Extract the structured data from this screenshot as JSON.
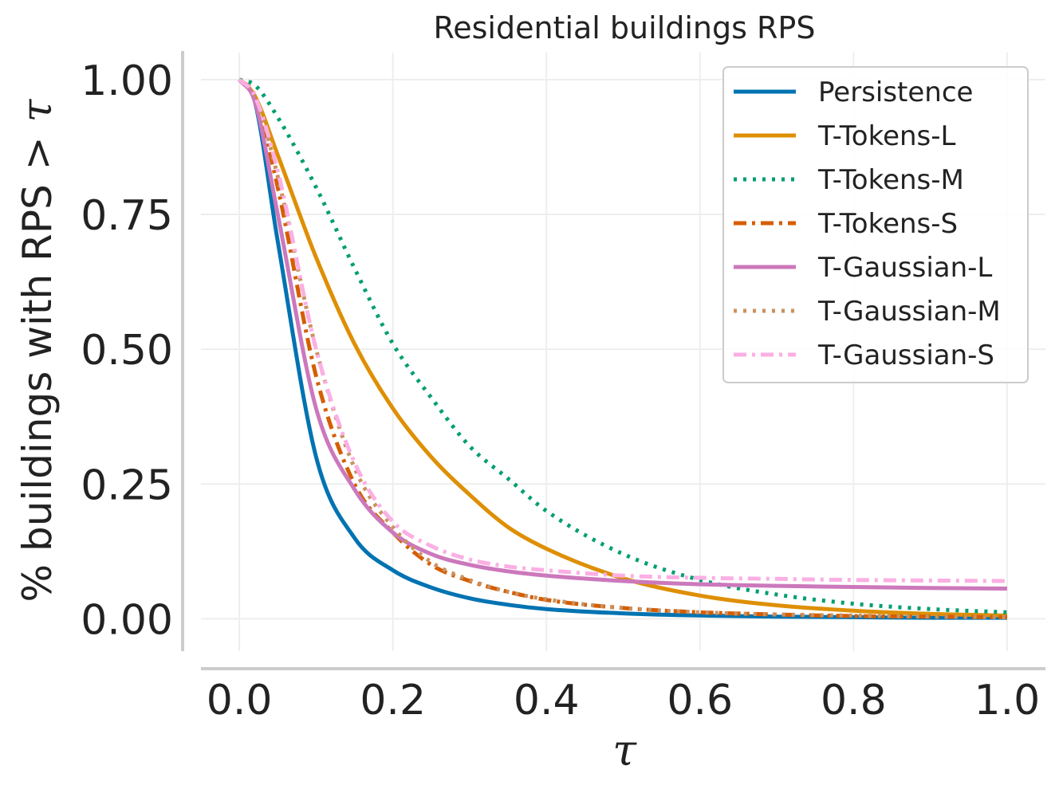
{
  "chart_data": {
    "type": "line",
    "title": "Residential buildings RPS",
    "xlabel": "τ",
    "ylabel_prefix": "% buildings with RPS",
    "ylabel_op": ">",
    "ylabel_var": "τ",
    "xlim": [
      -0.05,
      1.05
    ],
    "ylim": [
      -0.06,
      1.05
    ],
    "xticks": [
      0.0,
      0.2,
      0.4,
      0.6,
      0.8,
      1.0
    ],
    "xtick_labels": [
      "0.0",
      "0.2",
      "0.4",
      "0.6",
      "0.8",
      "1.0"
    ],
    "yticks": [
      0.0,
      0.25,
      0.5,
      0.75,
      1.0
    ],
    "ytick_labels": [
      "0.00",
      "0.25",
      "0.50",
      "0.75",
      "1.00"
    ],
    "grid": true,
    "legend_position": "top-right",
    "x": [
      0.0,
      0.02,
      0.05,
      0.1,
      0.15,
      0.2,
      0.25,
      0.3,
      0.35,
      0.4,
      0.5,
      0.6,
      0.7,
      0.8,
      0.9,
      1.0
    ],
    "series": [
      {
        "name": "Persistence",
        "color": "#0173b2",
        "dash": "solid",
        "values": [
          1.0,
          0.96,
          0.7,
          0.3,
          0.15,
          0.09,
          0.058,
          0.038,
          0.026,
          0.018,
          0.01,
          0.006,
          0.004,
          0.003,
          0.002,
          0.002
        ]
      },
      {
        "name": "T-Tokens-L",
        "color": "#de8f05",
        "dash": "solid",
        "values": [
          1.0,
          0.97,
          0.86,
          0.67,
          0.51,
          0.39,
          0.3,
          0.23,
          0.17,
          0.13,
          0.075,
          0.043,
          0.025,
          0.015,
          0.009,
          0.006
        ]
      },
      {
        "name": "T-Tokens-M",
        "color": "#029e73",
        "dash": "dot",
        "values": [
          1.0,
          0.99,
          0.93,
          0.8,
          0.65,
          0.51,
          0.41,
          0.32,
          0.26,
          0.2,
          0.12,
          0.072,
          0.045,
          0.028,
          0.018,
          0.012
        ]
      },
      {
        "name": "T-Tokens-S",
        "color": "#d55e00",
        "dash": "dashdot",
        "values": [
          1.0,
          0.97,
          0.8,
          0.45,
          0.25,
          0.16,
          0.1,
          0.07,
          0.05,
          0.035,
          0.02,
          0.012,
          0.008,
          0.005,
          0.004,
          0.003
        ]
      },
      {
        "name": "T-Gaussian-L",
        "color": "#cc78bc",
        "dash": "solid",
        "values": [
          1.0,
          0.96,
          0.75,
          0.39,
          0.24,
          0.16,
          0.12,
          0.1,
          0.088,
          0.08,
          0.07,
          0.064,
          0.061,
          0.059,
          0.057,
          0.056
        ]
      },
      {
        "name": "T-Gaussian-M",
        "color": "#ca9161",
        "dash": "dot",
        "values": [
          1.0,
          0.97,
          0.82,
          0.5,
          0.28,
          0.17,
          0.105,
          0.072,
          0.05,
          0.036,
          0.02,
          0.012,
          0.008,
          0.006,
          0.004,
          0.003
        ]
      },
      {
        "name": "T-Gaussian-S",
        "color": "#fbafe4",
        "dash": "dashdot",
        "values": [
          1.0,
          0.97,
          0.83,
          0.5,
          0.29,
          0.18,
          0.135,
          0.11,
          0.097,
          0.09,
          0.08,
          0.076,
          0.074,
          0.072,
          0.071,
          0.07
        ]
      }
    ]
  }
}
